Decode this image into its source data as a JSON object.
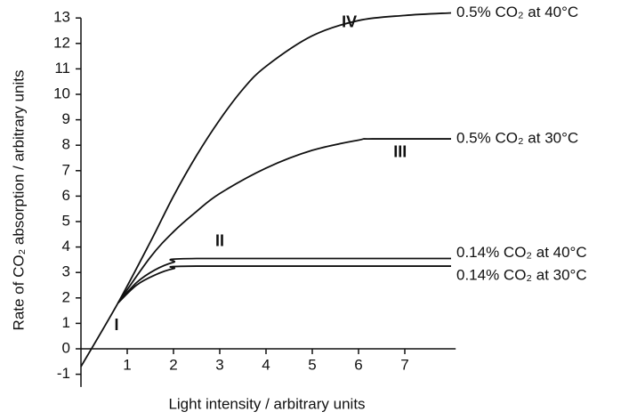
{
  "chart_data": {
    "type": "line",
    "xlabel": "Light intensity / arbitrary units",
    "ylabel": "Rate of CO₂ absorption / arbitrary units",
    "xlim": [
      0,
      8.1
    ],
    "ylim": [
      -1.5,
      13
    ],
    "xticks": [
      1,
      2,
      3,
      4,
      5,
      6,
      7
    ],
    "yticks": [
      -1,
      0,
      1,
      2,
      3,
      4,
      5,
      6,
      7,
      8,
      9,
      10,
      11,
      12,
      13
    ],
    "series": [
      {
        "name": "0.5% CO₂ at 40°C",
        "color": "#111111",
        "x": [
          0,
          0.8,
          1.5,
          2,
          2.5,
          3,
          3.5,
          4,
          5,
          6,
          7,
          8
        ],
        "values": [
          -0.7,
          1.8,
          4.2,
          6,
          7.6,
          9,
          10.2,
          11.1,
          12.3,
          12.9,
          13.1,
          13.2
        ]
      },
      {
        "name": "0.5% CO₂ at 30°C",
        "color": "#111111",
        "x": [
          0.8,
          1.5,
          2,
          2.5,
          3,
          4,
          5,
          6,
          6.3,
          8
        ],
        "values": [
          1.8,
          3.6,
          4.6,
          5.4,
          6.1,
          7.1,
          7.8,
          8.2,
          8.25,
          8.25
        ]
      },
      {
        "name": "0.14% CO₂ at 40°C",
        "color": "#111111",
        "x": [
          0.8,
          1.2,
          1.6,
          2,
          2.5,
          8
        ],
        "values": [
          1.8,
          2.6,
          3.1,
          3.4,
          3.55,
          3.55
        ]
      },
      {
        "name": "0.14% CO₂ at 30°C",
        "color": "#111111",
        "x": [
          0.8,
          1.2,
          1.6,
          2,
          2.5,
          8
        ],
        "values": [
          1.8,
          2.5,
          2.9,
          3.15,
          3.25,
          3.25
        ]
      }
    ],
    "annotations": [
      {
        "text": "IV",
        "x": 5.8,
        "y": 12.8
      },
      {
        "text": "III",
        "x": 6.9,
        "y": 7.7
      },
      {
        "text": "II",
        "x": 3.0,
        "y": 4.2
      },
      {
        "text": "I",
        "x": 0.77,
        "y": 0.9
      }
    ]
  }
}
